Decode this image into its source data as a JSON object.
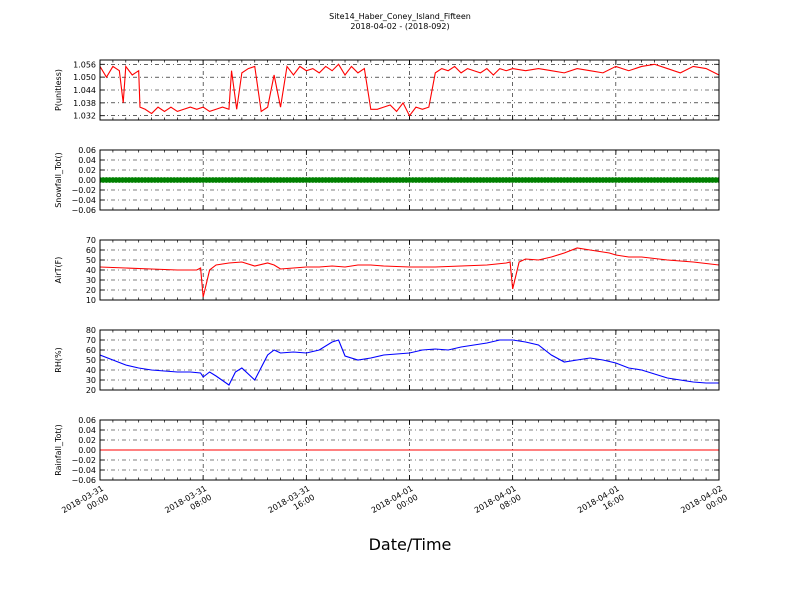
{
  "header": {
    "title": "Site14_Haber_Coney_Island_Fifteen",
    "subtitle": "2018-04-02 - (2018-092)"
  },
  "xaxis": {
    "label": "Date/Time",
    "tick_labels": [
      [
        "2018-03-31",
        "00:00"
      ],
      [
        "2018-03-31",
        "08:00"
      ],
      [
        "2018-03-31",
        "16:00"
      ],
      [
        "2018-04-01",
        "00:00"
      ],
      [
        "2018-04-01",
        "08:00"
      ],
      [
        "2018-04-01",
        "16:00"
      ],
      [
        "2018-04-02",
        "00:00"
      ]
    ]
  },
  "chart_data": [
    {
      "type": "line",
      "ylabel": "P(unitless)",
      "x_range_hours": [
        0,
        48
      ],
      "ylim": [
        1.03,
        1.058
      ],
      "yticks": [
        1.032,
        1.038,
        1.044,
        1.05,
        1.056
      ],
      "ytick_labels": [
        "1.032",
        "1.038",
        "1.044",
        "1.050",
        "1.056"
      ],
      "grid": true,
      "color": "#ff0000",
      "series": [
        {
          "x_hours": [
            0,
            0.5,
            1.0,
            1.5,
            1.8,
            2.0,
            2.5,
            3.0,
            3.1,
            3.5,
            4.0,
            4.5,
            5.0,
            5.5,
            6.0,
            6.5,
            7.0,
            7.5,
            8.0,
            8.5,
            9.0,
            9.5,
            10.0,
            10.2,
            10.6,
            11.0,
            11.5,
            12.0,
            12.5,
            13.0,
            13.5,
            14.0,
            14.5,
            15.0,
            15.5,
            16.0,
            16.5,
            17.0,
            17.5,
            18.0,
            18.5,
            19.0,
            19.5,
            20.0,
            20.5,
            21.0,
            21.5,
            22.0,
            22.5,
            23.0,
            23.5,
            24.0,
            24.5,
            25.0,
            25.5,
            26.0,
            26.5,
            27.0,
            27.5,
            28.0,
            28.5,
            29.0,
            29.5,
            30.0,
            30.5,
            31.0,
            31.5,
            32.0,
            33.0,
            34.0,
            35.0,
            36.0,
            37.0,
            38.0,
            39.0,
            40.0,
            41.0,
            42.0,
            43.0,
            44.0,
            45.0,
            46.0,
            47.0,
            48.0
          ],
          "values": [
            1.055,
            1.05,
            1.055,
            1.053,
            1.038,
            1.055,
            1.051,
            1.053,
            1.036,
            1.035,
            1.033,
            1.036,
            1.034,
            1.036,
            1.034,
            1.035,
            1.036,
            1.035,
            1.036,
            1.034,
            1.035,
            1.036,
            1.035,
            1.053,
            1.035,
            1.052,
            1.054,
            1.055,
            1.034,
            1.036,
            1.051,
            1.036,
            1.055,
            1.051,
            1.055,
            1.053,
            1.054,
            1.052,
            1.055,
            1.053,
            1.056,
            1.051,
            1.055,
            1.052,
            1.054,
            1.035,
            1.035,
            1.036,
            1.037,
            1.034,
            1.038,
            1.032,
            1.036,
            1.035,
            1.036,
            1.052,
            1.054,
            1.053,
            1.055,
            1.052,
            1.054,
            1.053,
            1.052,
            1.054,
            1.051,
            1.054,
            1.053,
            1.054,
            1.053,
            1.054,
            1.053,
            1.052,
            1.054,
            1.053,
            1.052,
            1.055,
            1.053,
            1.055,
            1.056,
            1.054,
            1.052,
            1.055,
            1.054,
            1.051
          ]
        }
      ]
    },
    {
      "type": "scatter",
      "ylabel": "Snowfall_Tot()",
      "x_range_hours": [
        0,
        48
      ],
      "ylim": [
        -0.06,
        0.06
      ],
      "yticks": [
        -0.06,
        -0.04,
        -0.02,
        0.0,
        0.02,
        0.04,
        0.06
      ],
      "ytick_labels": [
        "−0.06",
        "−0.04",
        "−0.02",
        "0.00",
        "0.02",
        "0.04",
        "0.06"
      ],
      "grid": true,
      "color": "#008000",
      "series": [
        {
          "x_hours": [
            0,
            48
          ],
          "values": [
            0,
            0
          ]
        }
      ]
    },
    {
      "type": "line",
      "ylabel": "AirT(F)",
      "x_range_hours": [
        0,
        48
      ],
      "ylim": [
        10,
        70
      ],
      "yticks": [
        10,
        20,
        30,
        40,
        50,
        60,
        70
      ],
      "ytick_labels": [
        "10",
        "20",
        "30",
        "40",
        "50",
        "60",
        "70"
      ],
      "grid": true,
      "color": "#ff0000",
      "series": [
        {
          "x_hours": [
            0,
            2,
            4,
            6,
            7.5,
            7.8,
            8.0,
            8.5,
            9.0,
            10.0,
            11.0,
            12.0,
            13.0,
            13.5,
            14.0,
            15.0,
            16.0,
            17.0,
            18.0,
            19.0,
            20.0,
            21.0,
            22.0,
            24.0,
            26.0,
            28.0,
            30.0,
            31.5,
            31.8,
            32.0,
            32.5,
            33.0,
            34.0,
            35.0,
            36.0,
            37.0,
            38.0,
            39.0,
            39.5,
            40.0,
            41.0,
            42.0,
            44.0,
            46.0,
            48.0
          ],
          "values": [
            43,
            42,
            41,
            40,
            40,
            42,
            13,
            40,
            45,
            47,
            48,
            44,
            47,
            45,
            41,
            42,
            43,
            43,
            44,
            43,
            45,
            45,
            44,
            43,
            43,
            44,
            45,
            47,
            48,
            21,
            48,
            51,
            50,
            53,
            57,
            62,
            60,
            58,
            57,
            55,
            53,
            53,
            50,
            48,
            45
          ]
        }
      ]
    },
    {
      "type": "line",
      "ylabel": "RH(%)",
      "x_range_hours": [
        0,
        48
      ],
      "ylim": [
        20,
        80
      ],
      "yticks": [
        20,
        30,
        40,
        50,
        60,
        70,
        80
      ],
      "ytick_labels": [
        "20",
        "30",
        "40",
        "50",
        "60",
        "70",
        "80"
      ],
      "grid": true,
      "color": "#0000ff",
      "series": [
        {
          "x_hours": [
            0,
            1,
            2,
            3,
            4,
            5,
            6,
            7,
            7.8,
            8.0,
            8.5,
            9.0,
            10.0,
            10.5,
            11.0,
            12.0,
            13.0,
            13.5,
            14.0,
            15.0,
            16.0,
            17.0,
            18.0,
            18.5,
            19.0,
            20.0,
            21.0,
            22.0,
            23.0,
            24.0,
            25.0,
            26.0,
            27.0,
            28.0,
            29.0,
            30.0,
            31.0,
            32.0,
            33.0,
            34.0,
            35.0,
            36.0,
            37.0,
            38.0,
            39.0,
            40.0,
            41.0,
            42.0,
            43.0,
            44.0,
            45.0,
            46.0,
            47.0,
            48.0
          ],
          "values": [
            55,
            50,
            45,
            42,
            40,
            39,
            38,
            38,
            37,
            33,
            38,
            34,
            25,
            38,
            42,
            30,
            55,
            60,
            57,
            58,
            57,
            60,
            68,
            70,
            54,
            50,
            52,
            55,
            56,
            57,
            60,
            61,
            60,
            63,
            65,
            67,
            70,
            70,
            68,
            65,
            55,
            48,
            50,
            52,
            50,
            47,
            42,
            40,
            36,
            32,
            30,
            28,
            27,
            27
          ]
        }
      ]
    },
    {
      "type": "line",
      "ylabel": "Rainfall_Tot()",
      "x_range_hours": [
        0,
        48
      ],
      "ylim": [
        -0.06,
        0.06
      ],
      "yticks": [
        -0.06,
        -0.04,
        -0.02,
        0.0,
        0.02,
        0.04,
        0.06
      ],
      "ytick_labels": [
        "−0.06",
        "−0.04",
        "−0.02",
        "0.00",
        "0.02",
        "0.04",
        "0.06"
      ],
      "grid": true,
      "color": "#ff0000",
      "series": [
        {
          "x_hours": [
            0,
            48
          ],
          "values": [
            0,
            0
          ]
        }
      ]
    }
  ]
}
